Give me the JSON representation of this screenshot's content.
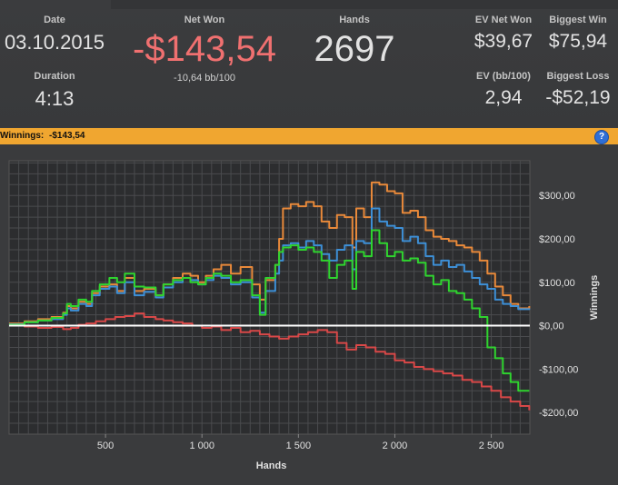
{
  "stats": {
    "date_label": "Date",
    "date_value": "03.10.2015",
    "duration_label": "Duration",
    "duration_value": "4:13",
    "net_won_label": "Net Won",
    "net_won_value": "-$143,54",
    "net_won_sub": "-10,64 bb/100",
    "hands_label": "Hands",
    "hands_value": "2697",
    "ev_net_won_label": "EV Net Won",
    "ev_net_won_value": "$39,67",
    "biggest_win_label": "Biggest Win",
    "biggest_win_value": "$75,94",
    "ev_bb_label": "EV (bb/100)",
    "ev_bb_value": "2,94",
    "biggest_loss_label": "Biggest Loss",
    "biggest_loss_value": "-$52,19"
  },
  "bar": {
    "label": "Winnings:",
    "value": "-$143,54",
    "help": "?"
  },
  "colors": {
    "net_won": "#f07070",
    "orange": "#e8893a",
    "blue": "#3d8fd6",
    "green": "#2fd42f",
    "red": "#d84848",
    "zero": "#ffffff",
    "bar": "#f0a630"
  },
  "chart_data": {
    "type": "line",
    "xlabel": "Hands",
    "ylabel": "Winnings",
    "xlim": [
      0,
      2700
    ],
    "ylim": [
      -250,
      380
    ],
    "grid": true,
    "x_ticks": [
      500,
      1000,
      1500,
      2000,
      2500
    ],
    "x_tick_labels": [
      "500",
      "1 000",
      "1 500",
      "2 000",
      "2 500"
    ],
    "y_ticks": [
      300,
      200,
      100,
      0,
      -100,
      -200
    ],
    "y_tick_labels": [
      "$300,00",
      "$200,00",
      "$100,00",
      "$0,00",
      "-$100,00",
      "-$200,00"
    ],
    "series": [
      {
        "color": "#e8893a",
        "x": [
          0,
          80,
          150,
          220,
          280,
          300,
          320,
          360,
          400,
          430,
          470,
          520,
          560,
          600,
          650,
          700,
          760,
          800,
          850,
          900,
          940,
          980,
          1020,
          1060,
          1100,
          1150,
          1200,
          1260,
          1300,
          1330,
          1380,
          1400,
          1420,
          1460,
          1500,
          1540,
          1580,
          1620,
          1660,
          1700,
          1740,
          1780,
          1800,
          1840,
          1880,
          1920,
          1960,
          2000,
          2040,
          2080,
          2120,
          2160,
          2200,
          2240,
          2280,
          2320,
          2360,
          2400,
          2440,
          2480,
          2520,
          2560,
          2600,
          2640,
          2697
        ],
        "y": [
          5,
          10,
          15,
          20,
          30,
          45,
          40,
          55,
          50,
          75,
          90,
          95,
          80,
          110,
          80,
          85,
          70,
          95,
          110,
          120,
          115,
          100,
          115,
          130,
          140,
          120,
          135,
          95,
          60,
          105,
          140,
          200,
          270,
          280,
          275,
          285,
          275,
          240,
          225,
          255,
          250,
          180,
          270,
          250,
          330,
          325,
          310,
          305,
          260,
          265,
          250,
          220,
          205,
          200,
          195,
          185,
          180,
          170,
          150,
          120,
          90,
          70,
          50,
          40,
          45
        ]
      },
      {
        "color": "#3d8fd6",
        "x": [
          0,
          80,
          150,
          220,
          280,
          300,
          320,
          360,
          400,
          430,
          470,
          520,
          560,
          600,
          650,
          700,
          760,
          800,
          850,
          900,
          940,
          980,
          1020,
          1060,
          1100,
          1150,
          1200,
          1260,
          1300,
          1330,
          1380,
          1400,
          1420,
          1460,
          1500,
          1540,
          1580,
          1620,
          1660,
          1700,
          1740,
          1780,
          1800,
          1840,
          1880,
          1920,
          1960,
          2000,
          2040,
          2080,
          2120,
          2160,
          2200,
          2240,
          2280,
          2320,
          2360,
          2400,
          2440,
          2480,
          2520,
          2560,
          2600,
          2640,
          2697
        ],
        "y": [
          3,
          8,
          12,
          15,
          25,
          40,
          35,
          50,
          45,
          70,
          85,
          90,
          75,
          100,
          70,
          78,
          65,
          88,
          100,
          110,
          105,
          95,
          105,
          115,
          110,
          95,
          100,
          65,
          30,
          80,
          120,
          150,
          185,
          190,
          180,
          195,
          185,
          165,
          150,
          175,
          185,
          130,
          195,
          190,
          270,
          240,
          230,
          225,
          195,
          205,
          190,
          160,
          140,
          150,
          135,
          140,
          125,
          110,
          95,
          85,
          60,
          50,
          45,
          38,
          40
        ]
      },
      {
        "color": "#2fd42f",
        "x": [
          0,
          80,
          150,
          220,
          280,
          300,
          320,
          360,
          400,
          430,
          470,
          520,
          560,
          600,
          650,
          700,
          760,
          800,
          850,
          900,
          940,
          980,
          1020,
          1060,
          1100,
          1150,
          1200,
          1260,
          1300,
          1330,
          1380,
          1400,
          1420,
          1460,
          1500,
          1540,
          1580,
          1620,
          1660,
          1700,
          1740,
          1780,
          1800,
          1840,
          1880,
          1920,
          1960,
          2000,
          2040,
          2080,
          2120,
          2160,
          2200,
          2240,
          2280,
          2320,
          2360,
          2400,
          2440,
          2480,
          2520,
          2560,
          2600,
          2640,
          2697
        ],
        "y": [
          2,
          8,
          12,
          18,
          28,
          50,
          45,
          60,
          55,
          80,
          95,
          110,
          100,
          120,
          90,
          88,
          70,
          95,
          105,
          110,
          100,
          95,
          110,
          120,
          115,
          100,
          105,
          70,
          25,
          110,
          140,
          170,
          180,
          185,
          175,
          180,
          170,
          150,
          110,
          140,
          150,
          85,
          170,
          160,
          220,
          190,
          160,
          170,
          150,
          155,
          145,
          115,
          95,
          105,
          80,
          75,
          60,
          40,
          20,
          -50,
          -75,
          -110,
          -130,
          -150,
          -150
        ]
      },
      {
        "color": "#d84848",
        "x": [
          0,
          80,
          150,
          220,
          280,
          320,
          360,
          400,
          450,
          500,
          550,
          600,
          650,
          700,
          760,
          800,
          850,
          900,
          950,
          1000,
          1050,
          1100,
          1150,
          1200,
          1250,
          1300,
          1350,
          1400,
          1450,
          1500,
          1550,
          1600,
          1650,
          1700,
          1750,
          1800,
          1850,
          1900,
          1950,
          2000,
          2050,
          2100,
          2150,
          2200,
          2250,
          2300,
          2350,
          2400,
          2450,
          2500,
          2550,
          2600,
          2650,
          2697
        ],
        "y": [
          0,
          -2,
          -5,
          -3,
          -8,
          -5,
          2,
          5,
          10,
          15,
          20,
          22,
          28,
          20,
          15,
          12,
          8,
          5,
          0,
          -5,
          -2,
          -10,
          -5,
          -15,
          -12,
          -20,
          -25,
          -30,
          -25,
          -20,
          -15,
          -10,
          -15,
          -40,
          -55,
          -45,
          -50,
          -60,
          -65,
          -80,
          -85,
          -95,
          -100,
          -105,
          -110,
          -115,
          -125,
          -130,
          -140,
          -150,
          -165,
          -175,
          -185,
          -195
        ]
      }
    ]
  }
}
